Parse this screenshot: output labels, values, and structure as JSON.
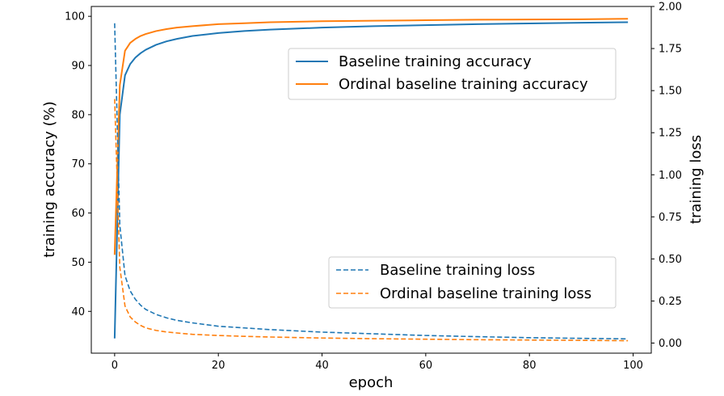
{
  "colors": {
    "baseline": "#1f77b4",
    "ordinal": "#ff7f0e"
  },
  "chart_data": {
    "type": "line",
    "xlabel": "epoch",
    "ylabel_left": "training accuracy (%)",
    "ylabel_right": "training loss",
    "xlim": [
      -4.5,
      103.5
    ],
    "ylim_left": [
      31.5,
      102.0
    ],
    "ylim_right": [
      -0.06,
      2.0
    ],
    "xticks": [
      0,
      20,
      40,
      60,
      80,
      100
    ],
    "xtick_labels": [
      "0",
      "20",
      "40",
      "60",
      "80",
      "100"
    ],
    "yticks_left": [
      40,
      50,
      60,
      70,
      80,
      90,
      100
    ],
    "ytick_labels_left": [
      "40",
      "50",
      "60",
      "70",
      "80",
      "90",
      "100"
    ],
    "yticks_right": [
      0.0,
      0.25,
      0.5,
      0.75,
      1.0,
      1.25,
      1.5,
      1.75,
      2.0
    ],
    "ytick_labels_right": [
      "0.00",
      "0.25",
      "0.50",
      "0.75",
      "1.00",
      "1.25",
      "1.50",
      "1.75",
      "2.00"
    ],
    "series": [
      {
        "name": "Baseline training accuracy",
        "axis": "left",
        "style": "solid",
        "color": "#1f77b4",
        "x": [
          0,
          1,
          2,
          3,
          4,
          5,
          6,
          8,
          10,
          12,
          15,
          20,
          25,
          30,
          40,
          50,
          60,
          70,
          80,
          90,
          99
        ],
        "y": [
          34.5,
          80.0,
          88.0,
          90.3,
          91.6,
          92.5,
          93.2,
          94.2,
          94.9,
          95.4,
          96.0,
          96.6,
          97.0,
          97.3,
          97.7,
          98.0,
          98.2,
          98.4,
          98.55,
          98.7,
          98.8
        ]
      },
      {
        "name": "Ordinal baseline training accuracy",
        "axis": "left",
        "style": "solid",
        "color": "#ff7f0e",
        "x": [
          0,
          1,
          2,
          3,
          4,
          5,
          6,
          8,
          10,
          12,
          15,
          20,
          25,
          30,
          40,
          50,
          60,
          70,
          80,
          90,
          99
        ],
        "y": [
          51.5,
          86.0,
          93.0,
          94.6,
          95.4,
          96.0,
          96.4,
          97.0,
          97.4,
          97.7,
          98.0,
          98.4,
          98.6,
          98.8,
          99.0,
          99.1,
          99.2,
          99.3,
          99.35,
          99.4,
          99.5
        ]
      },
      {
        "name": "Baseline training loss",
        "axis": "right",
        "style": "dashed",
        "color": "#1f77b4",
        "x": [
          0,
          1,
          2,
          3,
          4,
          5,
          6,
          8,
          10,
          12,
          15,
          20,
          25,
          30,
          40,
          50,
          60,
          70,
          80,
          90,
          99
        ],
        "y": [
          1.9,
          0.7,
          0.4,
          0.31,
          0.26,
          0.225,
          0.2,
          0.17,
          0.15,
          0.135,
          0.12,
          0.1,
          0.09,
          0.08,
          0.065,
          0.055,
          0.045,
          0.038,
          0.032,
          0.028,
          0.025
        ]
      },
      {
        "name": "Ordinal baseline training loss",
        "axis": "right",
        "style": "dashed",
        "color": "#ff7f0e",
        "x": [
          0,
          1,
          2,
          3,
          4,
          5,
          6,
          8,
          10,
          12,
          15,
          20,
          25,
          30,
          40,
          50,
          60,
          70,
          80,
          90,
          99
        ],
        "y": [
          1.45,
          0.45,
          0.22,
          0.155,
          0.125,
          0.105,
          0.09,
          0.075,
          0.066,
          0.06,
          0.052,
          0.045,
          0.04,
          0.036,
          0.03,
          0.026,
          0.023,
          0.02,
          0.018,
          0.016,
          0.014
        ]
      }
    ],
    "legends": [
      {
        "location": "upper-right",
        "entries": [
          "Baseline training accuracy",
          "Ordinal baseline training accuracy"
        ]
      },
      {
        "location": "lower-right",
        "entries": [
          "Baseline training loss",
          "Ordinal baseline training loss"
        ]
      }
    ]
  }
}
